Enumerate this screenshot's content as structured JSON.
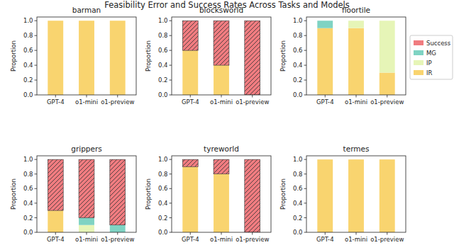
{
  "title": "Feasibility Error and Success Rates Across Tasks and Models",
  "chart_data": [
    {
      "type": "bar",
      "stacked": true,
      "title": "barman",
      "ylabel": "Proportion",
      "categories": [
        "GPT-4",
        "o1-mini",
        "o1-preview"
      ],
      "ylim": [
        0,
        1.05
      ],
      "yticks": [
        {
          "value": 0,
          "label": "0.0"
        },
        {
          "value": 0.2,
          "label": "0.2"
        },
        {
          "value": 0.4,
          "label": "0.4"
        },
        {
          "value": 0.6,
          "label": "0.6"
        },
        {
          "value": 0.8,
          "label": "0.8"
        },
        {
          "value": 1,
          "label": "1.0"
        }
      ],
      "grid": false,
      "series": [
        {
          "name": "IR",
          "color": "#f9d46f",
          "values": [
            1,
            1,
            1
          ]
        },
        {
          "name": "IP",
          "color": "#e6f5b7",
          "values": [
            0,
            0,
            0
          ]
        },
        {
          "name": "MG",
          "color": "#7fd3c3",
          "values": [
            0,
            0,
            0
          ]
        },
        {
          "name": "Success",
          "color": "#f07c80",
          "values": [
            0,
            0,
            0
          ]
        }
      ]
    },
    {
      "type": "bar",
      "stacked": true,
      "title": "blocksworld",
      "ylabel": "Proportion",
      "categories": [
        "GPT-4",
        "o1-mini",
        "o1-preview"
      ],
      "ylim": [
        0,
        1.05
      ],
      "yticks": [
        {
          "value": 0,
          "label": "0.0"
        },
        {
          "value": 0.2,
          "label": "0.2"
        },
        {
          "value": 0.4,
          "label": "0.4"
        },
        {
          "value": 0.6,
          "label": "0.6"
        },
        {
          "value": 0.8,
          "label": "0.8"
        },
        {
          "value": 1,
          "label": "1.0"
        }
      ],
      "grid": false,
      "series": [
        {
          "name": "IR",
          "color": "#f9d46f",
          "values": [
            0.6,
            0.4,
            0
          ]
        },
        {
          "name": "IP",
          "color": "#e6f5b7",
          "values": [
            0,
            0,
            0
          ]
        },
        {
          "name": "MG",
          "color": "#7fd3c3",
          "values": [
            0,
            0,
            0
          ]
        },
        {
          "name": "Success",
          "color": "#f07c80",
          "values": [
            0.4,
            0.6,
            1
          ]
        }
      ]
    },
    {
      "type": "bar",
      "stacked": true,
      "title": "floortile",
      "ylabel": "Proportion",
      "categories": [
        "GPT-4",
        "o1-mini",
        "o1-preview"
      ],
      "ylim": [
        0,
        1.05
      ],
      "yticks": [
        {
          "value": 0,
          "label": "0.0"
        },
        {
          "value": 0.2,
          "label": "0.2"
        },
        {
          "value": 0.4,
          "label": "0.4"
        },
        {
          "value": 0.6,
          "label": "0.6"
        },
        {
          "value": 0.8,
          "label": "0.8"
        },
        {
          "value": 1,
          "label": "1.0"
        }
      ],
      "grid": false,
      "legend": "upper right",
      "series": [
        {
          "name": "IR",
          "color": "#f9d46f",
          "values": [
            0.9,
            0.9,
            0.3
          ]
        },
        {
          "name": "IP",
          "color": "#e6f5b7",
          "values": [
            0,
            0.1,
            0.7
          ]
        },
        {
          "name": "MG",
          "color": "#7fd3c3",
          "values": [
            0.1,
            0,
            0
          ]
        },
        {
          "name": "Success",
          "color": "#f07c80",
          "values": [
            0,
            0,
            0
          ]
        }
      ]
    },
    {
      "type": "bar",
      "stacked": true,
      "title": "grippers",
      "ylabel": "Proportion",
      "categories": [
        "GPT-4",
        "o1-mini",
        "o1-preview"
      ],
      "ylim": [
        0,
        1.05
      ],
      "yticks": [
        {
          "value": 0,
          "label": "0.0"
        },
        {
          "value": 0.2,
          "label": "0.2"
        },
        {
          "value": 0.4,
          "label": "0.4"
        },
        {
          "value": 0.6,
          "label": "0.6"
        },
        {
          "value": 0.8,
          "label": "0.8"
        },
        {
          "value": 1,
          "label": "1.0"
        }
      ],
      "grid": false,
      "series": [
        {
          "name": "IR",
          "color": "#f9d46f",
          "values": [
            0.3,
            0,
            0
          ]
        },
        {
          "name": "IP",
          "color": "#e6f5b7",
          "values": [
            0,
            0.1,
            0
          ]
        },
        {
          "name": "MG",
          "color": "#7fd3c3",
          "values": [
            0,
            0.1,
            0.1
          ]
        },
        {
          "name": "Success",
          "color": "#f07c80",
          "values": [
            0.7,
            0.8,
            0.9
          ]
        }
      ]
    },
    {
      "type": "bar",
      "stacked": true,
      "title": "tyreworld",
      "ylabel": "Proportion",
      "categories": [
        "GPT-4",
        "o1-mini",
        "o1-preview"
      ],
      "ylim": [
        0,
        1.05
      ],
      "yticks": [
        {
          "value": 0,
          "label": "0.0"
        },
        {
          "value": 0.2,
          "label": "0.2"
        },
        {
          "value": 0.4,
          "label": "0.4"
        },
        {
          "value": 0.6,
          "label": "0.6"
        },
        {
          "value": 0.8,
          "label": "0.8"
        },
        {
          "value": 1,
          "label": "1.0"
        }
      ],
      "grid": false,
      "series": [
        {
          "name": "IR",
          "color": "#f9d46f",
          "values": [
            0.9,
            0.8,
            0
          ]
        },
        {
          "name": "IP",
          "color": "#e6f5b7",
          "values": [
            0,
            0,
            0
          ]
        },
        {
          "name": "MG",
          "color": "#7fd3c3",
          "values": [
            0,
            0,
            0
          ]
        },
        {
          "name": "Success",
          "color": "#f07c80",
          "values": [
            0.1,
            0.2,
            1
          ]
        }
      ]
    },
    {
      "type": "bar",
      "stacked": true,
      "title": "termes",
      "ylabel": "Proportion",
      "categories": [
        "GPT-4",
        "o1-mini",
        "o1-preview"
      ],
      "ylim": [
        0,
        1.05
      ],
      "yticks": [
        {
          "value": 0,
          "label": "0.0"
        },
        {
          "value": 0.2,
          "label": "0.2"
        },
        {
          "value": 0.4,
          "label": "0.4"
        },
        {
          "value": 0.6,
          "label": "0.6"
        },
        {
          "value": 0.8,
          "label": "0.8"
        },
        {
          "value": 1,
          "label": "1.0"
        }
      ],
      "grid": false,
      "series": [
        {
          "name": "IR",
          "color": "#f9d46f",
          "values": [
            1,
            1,
            1
          ]
        },
        {
          "name": "IP",
          "color": "#e6f5b7",
          "values": [
            0,
            0,
            0
          ]
        },
        {
          "name": "MG",
          "color": "#7fd3c3",
          "values": [
            0,
            0,
            0
          ]
        },
        {
          "name": "Success",
          "color": "#f07c80",
          "values": [
            0,
            0,
            0
          ]
        }
      ]
    }
  ]
}
